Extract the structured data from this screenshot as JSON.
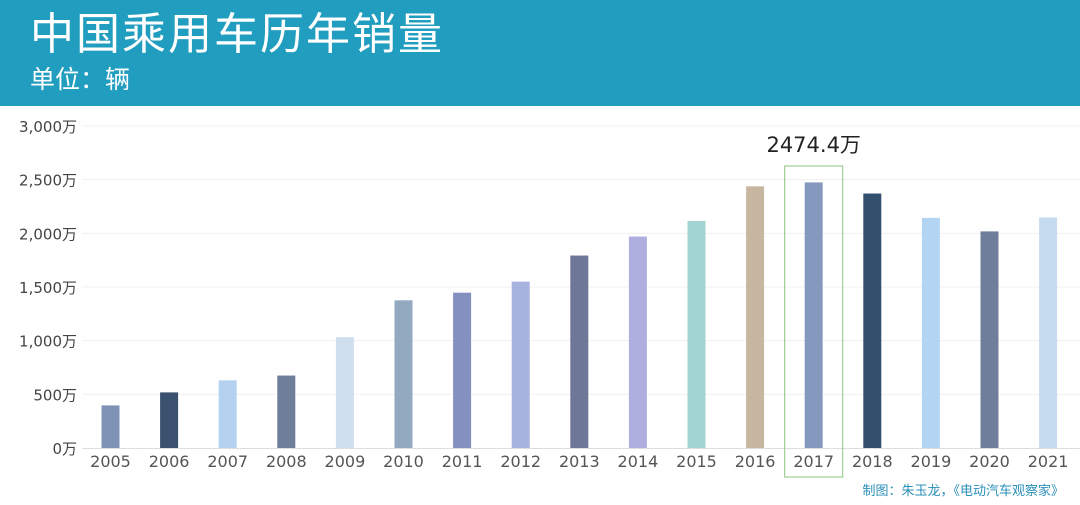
{
  "header": {
    "title": "中国乘用车历年销量",
    "subtitle": "单位：辆"
  },
  "credit": "制图：朱玉龙，《电动汽车观察家》",
  "chart_data": {
    "type": "bar",
    "title": "中国乘用车历年销量",
    "subtitle": "单位：辆",
    "categories": [
      "2005",
      "2006",
      "2007",
      "2008",
      "2009",
      "2010",
      "2011",
      "2012",
      "2013",
      "2014",
      "2015",
      "2016",
      "2017",
      "2018",
      "2019",
      "2020",
      "2021"
    ],
    "values": [
      397,
      518,
      630,
      675,
      1033,
      1376,
      1447,
      1550,
      1793,
      1970,
      2115,
      2438,
      2474.4,
      2371,
      2144,
      2018,
      2148
    ],
    "colors": [
      "#7e93b6",
      "#3b5170",
      "#b4d2f0",
      "#6f7f9b",
      "#cfdff0",
      "#93a9c0",
      "#8490bf",
      "#a6b3df",
      "#6e7797",
      "#aeaedf",
      "#a2d5d2",
      "#c7b7a0",
      "#8599bf",
      "#33506f",
      "#b4d4f4",
      "#6f7f9a",
      "#c6dbf0"
    ],
    "y_ticks": [
      0,
      500,
      1000,
      1500,
      2000,
      2500,
      3000
    ],
    "y_tick_labels": [
      "0万",
      "500万",
      "1,000万",
      "1,500万",
      "2,000万",
      "2,500万",
      "3,000万"
    ],
    "ylim": [
      0,
      3000
    ],
    "highlight": {
      "category": "2017",
      "label": "2474.4万",
      "box_color": "#8bc47f"
    },
    "grid": true
  }
}
